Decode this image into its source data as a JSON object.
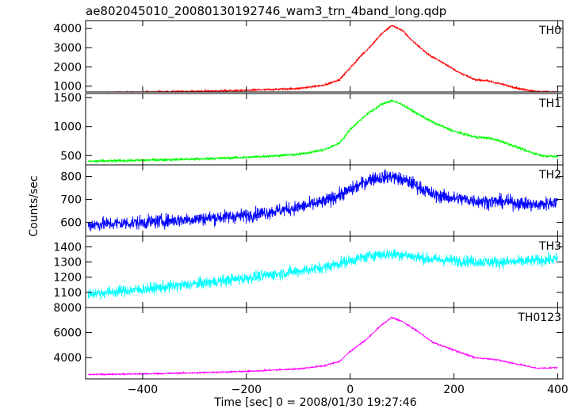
{
  "chart_data": {
    "type": "line",
    "title": "ae802045010_20080130192746_wam3_trn_4band_long.qdp",
    "xlabel": "Time [sec] 0 = 2008/01/30 19:27:46",
    "ylabel": "Counts/sec",
    "xlim": [
      -510,
      410
    ],
    "x_ticks": [
      -400,
      -200,
      0,
      200,
      400
    ],
    "x_tick_labels": [
      "−400",
      "−200",
      "0",
      "200",
      "400"
    ],
    "panels": [
      {
        "label": "TH0",
        "color": "#ff0000",
        "ylim": [
          700,
          4400
        ],
        "y_ticks": [
          1000,
          2000,
          3000,
          4000
        ],
        "noise": 50,
        "series_points": [
          [
            -505,
            650
          ],
          [
            -400,
            690
          ],
          [
            -300,
            730
          ],
          [
            -200,
            780
          ],
          [
            -100,
            880
          ],
          [
            -50,
            1050
          ],
          [
            -20,
            1350
          ],
          [
            0,
            1950
          ],
          [
            20,
            2550
          ],
          [
            40,
            3100
          ],
          [
            60,
            3700
          ],
          [
            80,
            4150
          ],
          [
            100,
            3900
          ],
          [
            120,
            3350
          ],
          [
            150,
            2650
          ],
          [
            180,
            2200
          ],
          [
            210,
            1700
          ],
          [
            240,
            1350
          ],
          [
            270,
            1250
          ],
          [
            300,
            1050
          ],
          [
            330,
            850
          ],
          [
            360,
            720
          ],
          [
            400,
            680
          ]
        ]
      },
      {
        "label": "TH1",
        "color": "#00ff00",
        "ylim": [
          340,
          1570
        ],
        "y_ticks": [
          500,
          1000,
          1500
        ],
        "noise": 22,
        "series_points": [
          [
            -505,
            400
          ],
          [
            -400,
            420
          ],
          [
            -300,
            440
          ],
          [
            -200,
            470
          ],
          [
            -100,
            520
          ],
          [
            -50,
            600
          ],
          [
            -20,
            720
          ],
          [
            0,
            950
          ],
          [
            30,
            1200
          ],
          [
            60,
            1380
          ],
          [
            80,
            1450
          ],
          [
            100,
            1380
          ],
          [
            130,
            1220
          ],
          [
            160,
            1070
          ],
          [
            200,
            920
          ],
          [
            240,
            820
          ],
          [
            270,
            800
          ],
          [
            300,
            720
          ],
          [
            340,
            580
          ],
          [
            370,
            500
          ],
          [
            400,
            480
          ]
        ]
      },
      {
        "label": "TH2",
        "color": "#0000ff",
        "ylim": [
          540,
          850
        ],
        "y_ticks": [
          600,
          700,
          800
        ],
        "noise": 30,
        "series_points": [
          [
            -505,
            590
          ],
          [
            -400,
            600
          ],
          [
            -300,
            615
          ],
          [
            -200,
            630
          ],
          [
            -100,
            665
          ],
          [
            -50,
            690
          ],
          [
            0,
            740
          ],
          [
            40,
            790
          ],
          [
            80,
            800
          ],
          [
            120,
            770
          ],
          [
            160,
            720
          ],
          [
            200,
            705
          ],
          [
            260,
            690
          ],
          [
            300,
            690
          ],
          [
            360,
            675
          ],
          [
            400,
            690
          ]
        ]
      },
      {
        "label": "TH3",
        "color": "#00ffff",
        "ylim": [
          1000,
          1470
        ],
        "y_ticks": [
          1100,
          1200,
          1300,
          1400
        ],
        "noise": 38,
        "series_points": [
          [
            -505,
            1090
          ],
          [
            -400,
            1120
          ],
          [
            -300,
            1155
          ],
          [
            -200,
            1195
          ],
          [
            -100,
            1240
          ],
          [
            -50,
            1265
          ],
          [
            0,
            1310
          ],
          [
            50,
            1350
          ],
          [
            100,
            1350
          ],
          [
            150,
            1320
          ],
          [
            200,
            1310
          ],
          [
            260,
            1300
          ],
          [
            320,
            1300
          ],
          [
            400,
            1320
          ]
        ]
      },
      {
        "label": "TH0123",
        "color": "#ff00ff",
        "ylim": [
          2300,
          8000
        ],
        "y_ticks": [
          4000,
          6000,
          8000
        ],
        "noise": 55,
        "series_points": [
          [
            -505,
            2650
          ],
          [
            -400,
            2700
          ],
          [
            -300,
            2780
          ],
          [
            -200,
            2900
          ],
          [
            -100,
            3100
          ],
          [
            -50,
            3350
          ],
          [
            -20,
            3700
          ],
          [
            0,
            4500
          ],
          [
            30,
            5400
          ],
          [
            60,
            6600
          ],
          [
            80,
            7200
          ],
          [
            100,
            6900
          ],
          [
            130,
            6100
          ],
          [
            160,
            5200
          ],
          [
            200,
            4600
          ],
          [
            240,
            4000
          ],
          [
            280,
            3850
          ],
          [
            320,
            3500
          ],
          [
            360,
            3150
          ],
          [
            400,
            3200
          ]
        ]
      }
    ]
  }
}
